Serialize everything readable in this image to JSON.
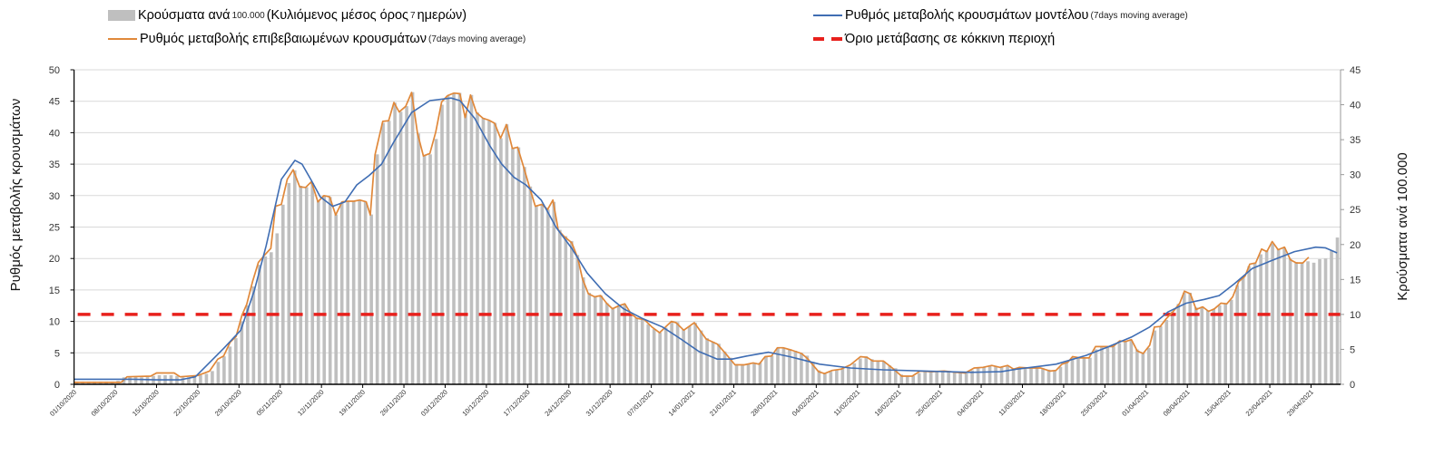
{
  "legend": {
    "bars": {
      "main": "Κρούσματα ανά",
      "small1": "100.000",
      "main2": "(Κυλιόμενος μέσος όρος",
      "small2": "7",
      "main3": "ημερών)"
    },
    "orange": {
      "main": "Ρυθμός μεταβολής επιβεβαιωμένων κρουσμάτων",
      "small": "(7days moving average)"
    },
    "blue": {
      "main": "Ρυθμός μεταβολής κρουσμάτων μοντέλου",
      "small": "(7days moving average)"
    },
    "threshold": {
      "main": "Όριο μετάβασης σε κόκκινη περιοχή"
    }
  },
  "chart_data": {
    "type": "bar+line",
    "title": "",
    "xlabel": "",
    "ylabel_left": "Ρυθμός μεταβολής κρουσμάτων",
    "ylabel_right": "Κρούσματα ανά 100.000",
    "ylim_left": [
      0,
      50
    ],
    "ylim_right": [
      0,
      45
    ],
    "yticks_left": [
      0,
      5,
      10,
      15,
      20,
      25,
      30,
      35,
      40,
      45,
      50
    ],
    "yticks_right": [
      0,
      5,
      10,
      15,
      20,
      25,
      30,
      35,
      40,
      45
    ],
    "grid": true,
    "x_day_range": [
      0,
      215
    ],
    "x_start_date": "01/10/2020",
    "x_tick_labels": [
      "01/10/2020",
      "08/10/2020",
      "15/10/2020",
      "22/10/2020",
      "29/10/2020",
      "05/11/2020",
      "12/11/2020",
      "19/11/2020",
      "26/11/2020",
      "03/12/2020",
      "10/12/2020",
      "17/12/2020",
      "24/12/2020",
      "31/12/2020",
      "07/01/2021",
      "14/01/2021",
      "21/01/2021",
      "28/01/2021",
      "04/02/2021",
      "11/02/2021",
      "18/02/2021",
      "25/02/2021",
      "04/03/2021",
      "11/03/2021",
      "18/03/2021",
      "25/03/2021",
      "01/04/2021",
      "08/04/2021",
      "15/04/2021",
      "22/04/2021",
      "29/04/2021"
    ],
    "colors": {
      "bars": "#bfbfbf",
      "orange": "#e0883a",
      "blue": "#3f6db3",
      "threshold": "#e8201c",
      "grid": "#d9d9d9"
    },
    "threshold_right_axis": 10,
    "bars_right_axis_daily": [
      0.4,
      0.4,
      0.4,
      0.4,
      0.4,
      0.4,
      0.4,
      0.5,
      1.0,
      1.1,
      1.1,
      1.0,
      1.1,
      1.2,
      1.3,
      1.3,
      1.3,
      1.2,
      1.0,
      1.0,
      1.0,
      1.3,
      1.5,
      1.9,
      3.2,
      4.0,
      5.4,
      6.6,
      9.0,
      11.3,
      14.0,
      17.1,
      18.3,
      18.9,
      21.6,
      25.7,
      28.8,
      30.6,
      28.4,
      28.2,
      28.8,
      26.3,
      27,
      26.8,
      24.3,
      26.1,
      26.2,
      26.2,
      26.4,
      26.1,
      24.3,
      32.9,
      37.4,
      37.7,
      40.3,
      39,
      39.8,
      41.8,
      35.9,
      32.7,
      32.9,
      35.1,
      40,
      41.3,
      41.6,
      41.7,
      38.7,
      41.4,
      38.9,
      38.1,
      37.8,
      37.4,
      35.2,
      37.2,
      33.8,
      33.9,
      31.1,
      28.3,
      25.5,
      25.7,
      25,
      26.1,
      22.1,
      21.2,
      20.5,
      18.5,
      15.3,
      13.1,
      12.5,
      12.7,
      11.6,
      10.8,
      11.2,
      11.5,
      10.3,
      9.5,
      9.4,
      8.6,
      7.9,
      7.4,
      8.1,
      8.8,
      8.9,
      7.9,
      8.3,
      8.8,
      7.7,
      6.6,
      6.1,
      5.8,
      4.7,
      3.8,
      2.9,
      2.8,
      2.9,
      3,
      3.1,
      3.9,
      4.1,
      5.2,
      5.2,
      5,
      4.8,
      4.5,
      4.1,
      3.2,
      2,
      1.5,
      1.8,
      2,
      2.2,
      2.5,
      3,
      3.7,
      4,
      3.6,
      3.3,
      3.3,
      2.7,
      2.3,
      1.4,
      1.2,
      1.2,
      1.6,
      1.9,
      1.8,
      1.8,
      1.9,
      1.9,
      1.8,
      1.7,
      1.6,
      2,
      2.3,
      2.4,
      2.6,
      2.6,
      2.5,
      2.6,
      2.3,
      2.3,
      2.4,
      2.3,
      2.3,
      2.3,
      2.1,
      1.9,
      2.5,
      3.1,
      3.8,
      3.9,
      3.8,
      3.8,
      5,
      5.4,
      5.4,
      5.4,
      5.9,
      6.1,
      6.3,
      5,
      4.5,
      5.2,
      7.7,
      8.3,
      9.2,
      10.4,
      11.5,
      13.1,
      13.1,
      11,
      11,
      10.6,
      10.7,
      11.3,
      11.6,
      12.1,
      14.2,
      15.3,
      16.9,
      17.3,
      18.6,
      19.2,
      20.1,
      19.4,
      19.5,
      18,
      17.5,
      17.4,
      17.6,
      17.4,
      17.9,
      18,
      19.1,
      21
    ],
    "series": [
      {
        "name": "Ρυθμός μεταβολής επιβεβαιωμένων κρουσμάτων",
        "axis": "left",
        "points_day_value": [
          [
            0,
            0.3
          ],
          [
            8,
            0.3
          ],
          [
            9,
            1.2
          ],
          [
            13,
            1.3
          ],
          [
            14,
            1.8
          ],
          [
            17,
            1.8
          ],
          [
            18,
            1.2
          ],
          [
            21,
            1.4
          ],
          [
            23,
            2.1
          ],
          [
            24.4,
            4
          ],
          [
            25.4,
            4.5
          ],
          [
            26.5,
            6.7
          ],
          [
            27.5,
            7.6
          ],
          [
            28.5,
            11
          ],
          [
            29.3,
            12.7
          ],
          [
            30.3,
            16.3
          ],
          [
            31.3,
            19.4
          ],
          [
            32.4,
            20.6
          ],
          [
            33.4,
            21.6
          ],
          [
            34.2,
            28.3
          ],
          [
            35.2,
            28.6
          ],
          [
            36.2,
            32.6
          ],
          [
            37.2,
            34.1
          ],
          [
            38.3,
            31.4
          ],
          [
            39.3,
            31.3
          ],
          [
            40.3,
            32.2
          ],
          [
            41.4,
            29
          ],
          [
            42.4,
            30
          ],
          [
            43.4,
            29.8
          ],
          [
            44.4,
            26.9
          ],
          [
            45.5,
            29
          ],
          [
            46.5,
            29.1
          ],
          [
            47.5,
            29.1
          ],
          [
            48.5,
            29.3
          ],
          [
            49.6,
            29
          ],
          [
            50.3,
            26.9
          ],
          [
            51.1,
            36.5
          ],
          [
            52.4,
            41.8
          ],
          [
            53.4,
            41.9
          ],
          [
            54.3,
            44.8
          ],
          [
            55.2,
            43.3
          ],
          [
            56.3,
            44.2
          ],
          [
            57.3,
            46.4
          ],
          [
            58.3,
            39.9
          ],
          [
            59.3,
            36.3
          ],
          [
            60.4,
            36.7
          ],
          [
            61.4,
            40.1
          ],
          [
            62.4,
            44.9
          ],
          [
            63.4,
            45.9
          ],
          [
            64.5,
            46.3
          ],
          [
            65.5,
            46.2
          ],
          [
            66.4,
            42.4
          ],
          [
            67.3,
            46
          ],
          [
            68.3,
            43.2
          ],
          [
            69.4,
            42.3
          ],
          [
            70.4,
            42
          ],
          [
            71.4,
            41.5
          ],
          [
            72.4,
            39.1
          ],
          [
            73.4,
            41.3
          ],
          [
            74.4,
            37.5
          ],
          [
            75.3,
            37.7
          ],
          [
            76.3,
            34.6
          ],
          [
            77.3,
            31.4
          ],
          [
            78.3,
            28.3
          ],
          [
            79.4,
            28.6
          ],
          [
            80.4,
            27.8
          ],
          [
            81.3,
            29.3
          ],
          [
            82.2,
            24.5
          ],
          [
            83.2,
            23.5
          ],
          [
            84.5,
            22.5
          ],
          [
            85.5,
            20.1
          ],
          [
            86.3,
            16.8
          ],
          [
            87.3,
            14.4
          ],
          [
            88.4,
            13.9
          ],
          [
            89.4,
            14.1
          ],
          [
            90.4,
            12.9
          ],
          [
            91.4,
            12
          ],
          [
            92.5,
            12.5
          ],
          [
            93.5,
            12.8
          ],
          [
            94.5,
            11.3
          ],
          [
            95.5,
            10.5
          ],
          [
            96.8,
            10.3
          ],
          [
            98.1,
            9.1
          ],
          [
            99.4,
            8.2
          ],
          [
            100.4,
            9.1
          ],
          [
            101.4,
            10
          ],
          [
            102.2,
            9.8
          ],
          [
            103.5,
            8.6
          ],
          [
            105.3,
            9.8
          ],
          [
            107.3,
            7.2
          ],
          [
            109.2,
            6.4
          ],
          [
            110.7,
            4.8
          ],
          [
            112.2,
            3.1
          ],
          [
            113.8,
            3.1
          ],
          [
            115.3,
            3.4
          ],
          [
            116.3,
            3.2
          ],
          [
            117.3,
            4.4
          ],
          [
            118.4,
            4.5
          ],
          [
            119.4,
            5.8
          ],
          [
            120.4,
            5.8
          ],
          [
            121.9,
            5.4
          ],
          [
            123.5,
            4.9
          ],
          [
            124.5,
            4.1
          ],
          [
            126.4,
            2
          ],
          [
            127.4,
            1.7
          ],
          [
            128.7,
            2.2
          ],
          [
            130.2,
            2.4
          ],
          [
            131.8,
            3.1
          ],
          [
            133.5,
            4.4
          ],
          [
            134.6,
            4.3
          ],
          [
            135.6,
            3.7
          ],
          [
            137.4,
            3.7
          ],
          [
            138.9,
            2.6
          ],
          [
            140.5,
            1.3
          ],
          [
            142.3,
            1.3
          ],
          [
            143.6,
            2.1
          ],
          [
            145.6,
            2
          ],
          [
            147.7,
            2.1
          ],
          [
            149.7,
            1.9
          ],
          [
            151.3,
            1.8
          ],
          [
            152.8,
            2.6
          ],
          [
            154.3,
            2.7
          ],
          [
            155.8,
            3
          ],
          [
            157.2,
            2.7
          ],
          [
            158.5,
            3
          ],
          [
            159.5,
            2.4
          ],
          [
            160.5,
            2.7
          ],
          [
            162,
            2.6
          ],
          [
            164.1,
            2.6
          ],
          [
            165.7,
            2.1
          ],
          [
            166.7,
            2.2
          ],
          [
            167.7,
            3.2
          ],
          [
            168.7,
            3.5
          ],
          [
            169.5,
            4.4
          ],
          [
            170.8,
            4.2
          ],
          [
            172.3,
            4.2
          ],
          [
            173.4,
            6
          ],
          [
            174.4,
            6
          ],
          [
            176.4,
            6
          ],
          [
            177.5,
            6.9
          ],
          [
            178.5,
            6.8
          ],
          [
            179.5,
            7.1
          ],
          [
            180.5,
            5.3
          ],
          [
            181.5,
            4.9
          ],
          [
            182.6,
            6.2
          ],
          [
            183.4,
            9.1
          ],
          [
            184.4,
            9.2
          ],
          [
            185.4,
            10.4
          ],
          [
            186.7,
            11.7
          ],
          [
            187.7,
            12.9
          ],
          [
            188.5,
            14.8
          ],
          [
            189.5,
            14.4
          ],
          [
            190.5,
            11.9
          ],
          [
            191.6,
            12.3
          ],
          [
            192.6,
            11.6
          ],
          [
            193.6,
            12
          ],
          [
            194.7,
            12.9
          ],
          [
            195.7,
            12.8
          ],
          [
            196.7,
            13.9
          ],
          [
            197.7,
            16.3
          ],
          [
            198.8,
            17.2
          ],
          [
            199.6,
            19.1
          ],
          [
            200.6,
            19.3
          ],
          [
            201.6,
            21.5
          ],
          [
            202.5,
            21.1
          ],
          [
            203.4,
            22.7
          ],
          [
            204.4,
            21.4
          ],
          [
            205.5,
            21.8
          ],
          [
            206.5,
            19.8
          ],
          [
            207.5,
            19.3
          ],
          [
            208.6,
            19.3
          ],
          [
            209.6,
            20.2
          ]
        ]
      },
      {
        "name": "Ρυθμός μεταβολής κρουσμάτων μοντέλου",
        "axis": "left",
        "points_day_value": [
          [
            0,
            0.8
          ],
          [
            10,
            0.8
          ],
          [
            14,
            0.7
          ],
          [
            18,
            0.7
          ],
          [
            20.6,
            1.2
          ],
          [
            25.4,
            5.7
          ],
          [
            28.3,
            8.6
          ],
          [
            30.6,
            14.9
          ],
          [
            32.6,
            22
          ],
          [
            35.2,
            32.6
          ],
          [
            37.5,
            35.6
          ],
          [
            38.7,
            35
          ],
          [
            40.3,
            32.4
          ],
          [
            41.8,
            29.8
          ],
          [
            43.9,
            28.3
          ],
          [
            46,
            29
          ],
          [
            48,
            31.7
          ],
          [
            50.1,
            33.2
          ],
          [
            52.2,
            35
          ],
          [
            54.2,
            38.4
          ],
          [
            57.3,
            43.2
          ],
          [
            60.4,
            45.1
          ],
          [
            64,
            45.5
          ],
          [
            65.5,
            45.1
          ],
          [
            68,
            42.3
          ],
          [
            70.6,
            37.9
          ],
          [
            72.6,
            35
          ],
          [
            74.7,
            32.9
          ],
          [
            76.7,
            31.7
          ],
          [
            79.3,
            29.3
          ],
          [
            81.8,
            25
          ],
          [
            84.5,
            21.6
          ],
          [
            87.1,
            17.7
          ],
          [
            90.2,
            14.4
          ],
          [
            93.3,
            12
          ],
          [
            96.4,
            10.5
          ],
          [
            99.9,
            9.1
          ],
          [
            103,
            7.2
          ],
          [
            106.1,
            5.2
          ],
          [
            109.2,
            4
          ],
          [
            111.7,
            4
          ],
          [
            114.2,
            4.5
          ],
          [
            117.9,
            5.1
          ],
          [
            121.5,
            4.4
          ],
          [
            126.6,
            3.2
          ],
          [
            131.8,
            2.6
          ],
          [
            137.3,
            2.3
          ],
          [
            144.6,
            2.1
          ],
          [
            152.3,
            1.9
          ],
          [
            157.4,
            2
          ],
          [
            160,
            2.4
          ],
          [
            166.7,
            3.2
          ],
          [
            171.8,
            4.6
          ],
          [
            175.4,
            5.9
          ],
          [
            179.5,
            7.5
          ],
          [
            182.6,
            9.1
          ],
          [
            185.7,
            11.5
          ],
          [
            188.8,
            12.9
          ],
          [
            191.9,
            13.5
          ],
          [
            194.4,
            14.1
          ],
          [
            197,
            16
          ],
          [
            200,
            18.4
          ],
          [
            203.1,
            19.6
          ],
          [
            207.2,
            21.1
          ],
          [
            210.8,
            21.8
          ],
          [
            212.4,
            21.7
          ],
          [
            214.4,
            20.9
          ]
        ]
      }
    ]
  }
}
